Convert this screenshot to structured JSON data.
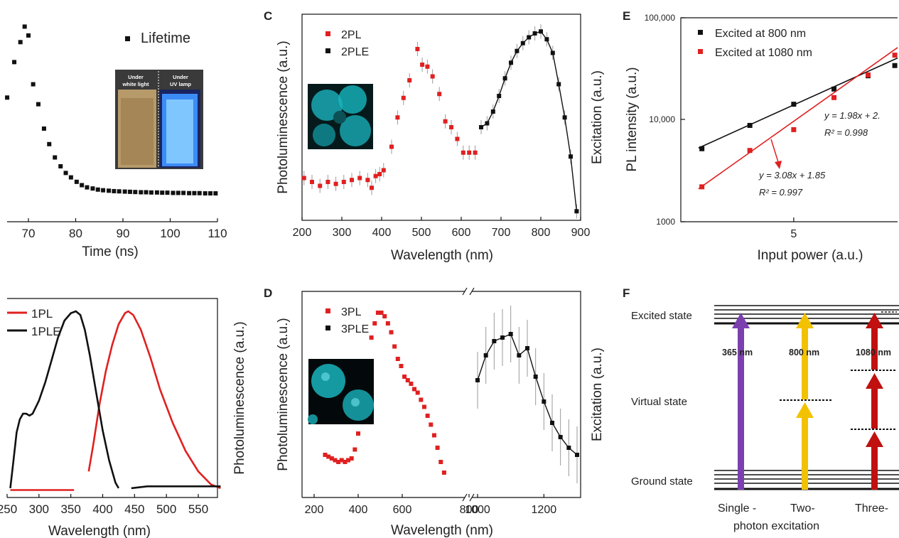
{
  "colors": {
    "red": "#e02020",
    "black": "#111111",
    "purple": "#7b3fb0",
    "yellow": "#f2c200",
    "darkred": "#c01010",
    "gray": "#8a8a8a",
    "cyan": "#1cc8d2"
  },
  "panels": {
    "C": "C",
    "D": "D",
    "E": "E",
    "F": "F"
  },
  "inset_photo": {
    "left": "Under\nwhite light",
    "right": "Under\nUV lamp"
  },
  "chart_data": [
    {
      "id": "lifetime",
      "type": "scatter",
      "xlabel": "Time (ns)",
      "ylabel": "",
      "xlim": [
        65,
        110
      ],
      "xticks": [
        "70",
        "80",
        "90",
        "100",
        "110"
      ],
      "series": [
        {
          "name": "Lifetime",
          "marker": "square",
          "color": "#111111",
          "x": [
            64.5,
            65.5,
            67,
            68.3,
            69.2,
            70,
            71,
            72.1,
            73.3,
            74.4,
            75.6,
            76.8,
            77.9,
            79,
            80.2,
            81.3,
            82.4,
            83.6,
            84.7,
            85.8,
            87,
            88.1,
            89.2,
            90.4,
            91.5,
            92.6,
            93.8,
            94.9,
            96,
            97.2,
            98.3,
            99.4,
            100.6,
            101.7,
            102.8,
            104,
            105.1,
            106.2,
            107.4,
            108.5,
            109.6
          ],
          "y": [
            0.32,
            0.56,
            0.72,
            0.81,
            0.88,
            0.84,
            0.62,
            0.53,
            0.42,
            0.35,
            0.29,
            0.25,
            0.22,
            0.2,
            0.18,
            0.165,
            0.155,
            0.15,
            0.145,
            0.142,
            0.14,
            0.138,
            0.137,
            0.136,
            0.135,
            0.134,
            0.133,
            0.133,
            0.132,
            0.132,
            0.131,
            0.131,
            0.13,
            0.13,
            0.13,
            0.129,
            0.129,
            0.129,
            0.128,
            0.128,
            0.128
          ]
        }
      ]
    },
    {
      "id": "1pl",
      "type": "line",
      "xlabel": "Wavelength (nm)",
      "ylabel": "Photoluminescence (a.u.)",
      "xlim": [
        245,
        585
      ],
      "xticks": [
        "250",
        "300",
        "350",
        "400",
        "450",
        "500",
        "550"
      ],
      "series": [
        {
          "name": "1PL",
          "color": "#e02020",
          "x": [
            255,
            355,
            null,
            378,
            385,
            395,
            405,
            415,
            425,
            435,
            440,
            448,
            460,
            475,
            490,
            510,
            530,
            550,
            570,
            585
          ],
          "y": [
            0.04,
            0.04,
            null,
            0.14,
            0.28,
            0.5,
            0.68,
            0.82,
            0.93,
            0.99,
            1.0,
            0.98,
            0.9,
            0.75,
            0.58,
            0.4,
            0.25,
            0.14,
            0.07,
            0.05
          ]
        },
        {
          "name": "1PLE",
          "color": "#111111",
          "x": [
            255,
            260,
            265,
            270,
            275,
            280,
            285,
            290,
            300,
            310,
            320,
            330,
            340,
            350,
            358,
            365,
            372,
            380,
            390,
            400,
            410,
            420,
            425,
            null,
            445,
            470,
            500,
            540,
            585
          ],
          "y": [
            0.05,
            0.2,
            0.35,
            0.42,
            0.45,
            0.45,
            0.44,
            0.45,
            0.52,
            0.62,
            0.74,
            0.86,
            0.95,
            0.99,
            1.0,
            0.98,
            0.9,
            0.76,
            0.56,
            0.36,
            0.2,
            0.08,
            0.05,
            null,
            0.05,
            0.06,
            0.06,
            0.06,
            0.06
          ]
        }
      ]
    },
    {
      "id": "C",
      "type": "scatter",
      "xlabel": "Wavelength (nm)",
      "ylabel": "Photoluminescence (a.u.)",
      "y2label": "Excitation (a.u.)",
      "xlim": [
        200,
        900
      ],
      "xticks": [
        "200",
        "300",
        "400",
        "500",
        "600",
        "700",
        "800",
        "900"
      ],
      "series": [
        {
          "name": "2PL",
          "color": "#e02020",
          "x": [
            205,
            225,
            245,
            265,
            285,
            305,
            325,
            345,
            365,
            375,
            385,
            395,
            405,
            425,
            440,
            455,
            470,
            490,
            502,
            515,
            528,
            545,
            560,
            575,
            590,
            605,
            620,
            635
          ],
          "y": [
            0.18,
            0.16,
            0.14,
            0.16,
            0.15,
            0.16,
            0.17,
            0.18,
            0.17,
            0.13,
            0.19,
            0.2,
            0.22,
            0.34,
            0.49,
            0.59,
            0.68,
            0.84,
            0.76,
            0.75,
            0.7,
            0.61,
            0.47,
            0.44,
            0.38,
            0.31,
            0.31,
            0.31
          ]
        },
        {
          "name": "2PLE",
          "color": "#111111",
          "fit": true,
          "x": [
            650,
            665,
            680,
            695,
            710,
            725,
            740,
            755,
            770,
            785,
            800,
            815,
            830,
            845,
            860,
            875,
            890
          ],
          "y": [
            0.44,
            0.46,
            0.52,
            0.6,
            0.69,
            0.77,
            0.83,
            0.87,
            0.9,
            0.92,
            0.93,
            0.89,
            0.82,
            0.66,
            0.49,
            0.29,
            0.01
          ]
        }
      ]
    },
    {
      "id": "D",
      "type": "scatter",
      "xlabel": "Wavelength (nm)",
      "ylabel": "Photoluminescence (a.u.)",
      "y2label": "Excitation (a.u.)",
      "xticks": [
        "200",
        "400",
        "600",
        "800",
        "1000",
        "1200"
      ],
      "series": [
        {
          "name": "3PL",
          "color": "#e02020",
          "x": [
            250,
            265,
            280,
            295,
            310,
            325,
            340,
            355,
            370,
            385,
            400,
            415,
            430,
            445,
            460,
            475,
            490,
            505,
            520,
            535,
            550,
            565,
            580,
            595,
            610,
            625,
            640,
            655,
            670,
            685,
            700,
            715,
            730,
            745,
            760,
            775,
            790
          ],
          "y": [
            0.16,
            0.15,
            0.14,
            0.13,
            0.12,
            0.13,
            0.12,
            0.13,
            0.14,
            0.19,
            0.28,
            0.38,
            0.52,
            0.68,
            0.82,
            0.9,
            0.96,
            0.96,
            0.94,
            0.9,
            0.85,
            0.77,
            0.7,
            0.66,
            0.6,
            0.58,
            0.56,
            0.53,
            0.51,
            0.47,
            0.43,
            0.38,
            0.33,
            0.27,
            0.2,
            0.12,
            0.06
          ]
        },
        {
          "name": "3PLE",
          "color": "#111111",
          "fit": true,
          "x": [
            1000,
            1025,
            1050,
            1075,
            1100,
            1125,
            1150,
            1175,
            1200,
            1225,
            1250,
            1275,
            1300
          ],
          "y": [
            0.58,
            0.72,
            0.8,
            0.82,
            0.84,
            0.72,
            0.76,
            0.6,
            0.46,
            0.34,
            0.26,
            0.2,
            0.16
          ]
        }
      ]
    },
    {
      "id": "E",
      "type": "scatter",
      "xlabel": "Input power (a.u.)",
      "ylabel": "PL intensity (a.u.)",
      "yscale": "log",
      "ylim": [
        1000,
        100000
      ],
      "xscale": "log",
      "xlim": [
        3.0,
        8.0
      ],
      "yticks": [
        "1000",
        "10,000",
        "100,000"
      ],
      "xticks": [
        "5"
      ],
      "series": [
        {
          "name": "Excited at 800 nm",
          "color": "#111111",
          "x": [
            3.3,
            4.1,
            5.0,
            6.0,
            7.0,
            7.9
          ],
          "y": [
            5200,
            8800,
            14200,
            20000,
            27000,
            34000
          ]
        },
        {
          "name": "Excited at 1080 nm",
          "color": "#e02020",
          "x": [
            3.3,
            4.1,
            5.0,
            6.0,
            7.0,
            7.9
          ],
          "y": [
            2200,
            5000,
            8000,
            16500,
            27500,
            43000
          ]
        }
      ],
      "annotations": [
        {
          "text": "y = 1.98x + 2.",
          "x": 5.9,
          "y": 11000
        },
        {
          "text": "R² = 0.998",
          "x": 5.9,
          "y": 8000
        },
        {
          "text": "y = 3.08x + 1.85",
          "x": 4.7,
          "y": 2900
        },
        {
          "text": "R² = 0.997",
          "x": 4.7,
          "y": 2100
        }
      ]
    }
  ],
  "F": {
    "levels": {
      "excited": "Excited state",
      "virtual": "Virtual state",
      "ground": "Ground state"
    },
    "wavelengths": [
      "365 nm",
      "800 nm",
      "1080 nm"
    ],
    "labels": {
      "single": "Single -",
      "two": "Two-",
      "three": "Three-",
      "photon": "photon excitation"
    }
  }
}
